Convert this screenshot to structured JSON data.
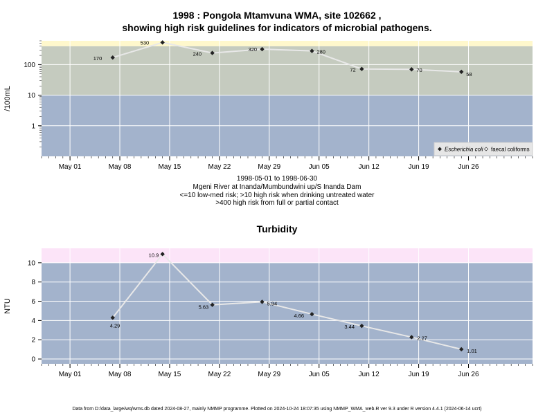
{
  "chart_data": [
    {
      "type": "line",
      "title_line1": "1998 : Pongola Mtamvuna WMA, site 102662 ,",
      "title_line2": "showing high risk guidelines for indicators of microbial pathogens.",
      "ylabel": "/100mL",
      "yscale": "log",
      "ylim": [
        0.1,
        600
      ],
      "yticks": [
        "1",
        "10",
        "100"
      ],
      "xlim": [
        "1998-04-27",
        "1998-07-05"
      ],
      "xticks": [
        "May 01",
        "May 08",
        "May 15",
        "May 22",
        "May 29",
        "Jun 05",
        "Jun 12",
        "Jun 19",
        "Jun 26"
      ],
      "bands": [
        {
          "from": 0.1,
          "to": 10,
          "color": "#a3b3cc",
          "meaning": "low-med risk"
        },
        {
          "from": 10,
          "to": 400,
          "color": "#c5cbbf",
          "meaning": "high risk drinking"
        },
        {
          "from": 400,
          "to": 600,
          "color": "#fff8cc",
          "meaning": "high risk contact"
        }
      ],
      "series": [
        {
          "name": "Escherichia coli",
          "x": [
            "1998-05-07",
            "1998-05-14",
            "1998-05-21",
            "1998-05-28",
            "1998-06-04",
            "1998-06-11",
            "1998-06-18",
            "1998-06-25"
          ],
          "values": [
            170,
            530,
            240,
            320,
            280,
            72,
            70,
            58
          ],
          "labels": [
            "170",
            "530",
            "240",
            "320",
            "280",
            "72",
            "70",
            "58"
          ]
        }
      ],
      "legend": [
        {
          "label": "Escherichia coli",
          "marker": "filled-diamond"
        },
        {
          "label": "faecal coliforms",
          "marker": "open-diamond"
        }
      ],
      "legend_position": "bottom-right",
      "notes": [
        "1998-05-01 to 1998-06-30",
        "Mgeni River at Inanda/Mumbundwini up/S Inanda Dam",
        "<=10 low-med risk; >10 high risk when drinking untreated water",
        ">400 high risk from full or partial contact"
      ]
    },
    {
      "type": "line",
      "title": "Turbidity",
      "ylabel": "NTU",
      "ylim": [
        -0.5,
        11.5
      ],
      "yticks": [
        "0",
        "2",
        "4",
        "6",
        "8",
        "10"
      ],
      "xlim": [
        "1998-04-27",
        "1998-07-05"
      ],
      "xticks": [
        "May 01",
        "May 08",
        "May 15",
        "May 22",
        "May 29",
        "Jun 05",
        "Jun 12",
        "Jun 19",
        "Jun 26"
      ],
      "bands": [
        {
          "from": -0.5,
          "to": 10,
          "color": "#a3b3cc"
        },
        {
          "from": 10,
          "to": 11.5,
          "color": "#fce4f8"
        }
      ],
      "series": [
        {
          "x": [
            "1998-05-07",
            "1998-05-14",
            "1998-05-21",
            "1998-05-28",
            "1998-06-04",
            "1998-06-11",
            "1998-06-18",
            "1998-06-25"
          ],
          "values": [
            4.29,
            10.9,
            5.63,
            5.94,
            4.66,
            3.44,
            2.27,
            1.01
          ],
          "labels": [
            "4.29",
            "10.9",
            "5.63",
            "5.94",
            "4.66",
            "3.44",
            "2.27",
            "1.01"
          ]
        }
      ]
    }
  ],
  "footer": "Data from D:/data_large/wq/wms.db dated 2024-08-27, mainly NMMP programme. Plotted on 2024-10-24 18:07:35 using NMMP_WMA_web.R ver 9.3 under R version 4.4.1 (2024-06-14 ucrt)"
}
